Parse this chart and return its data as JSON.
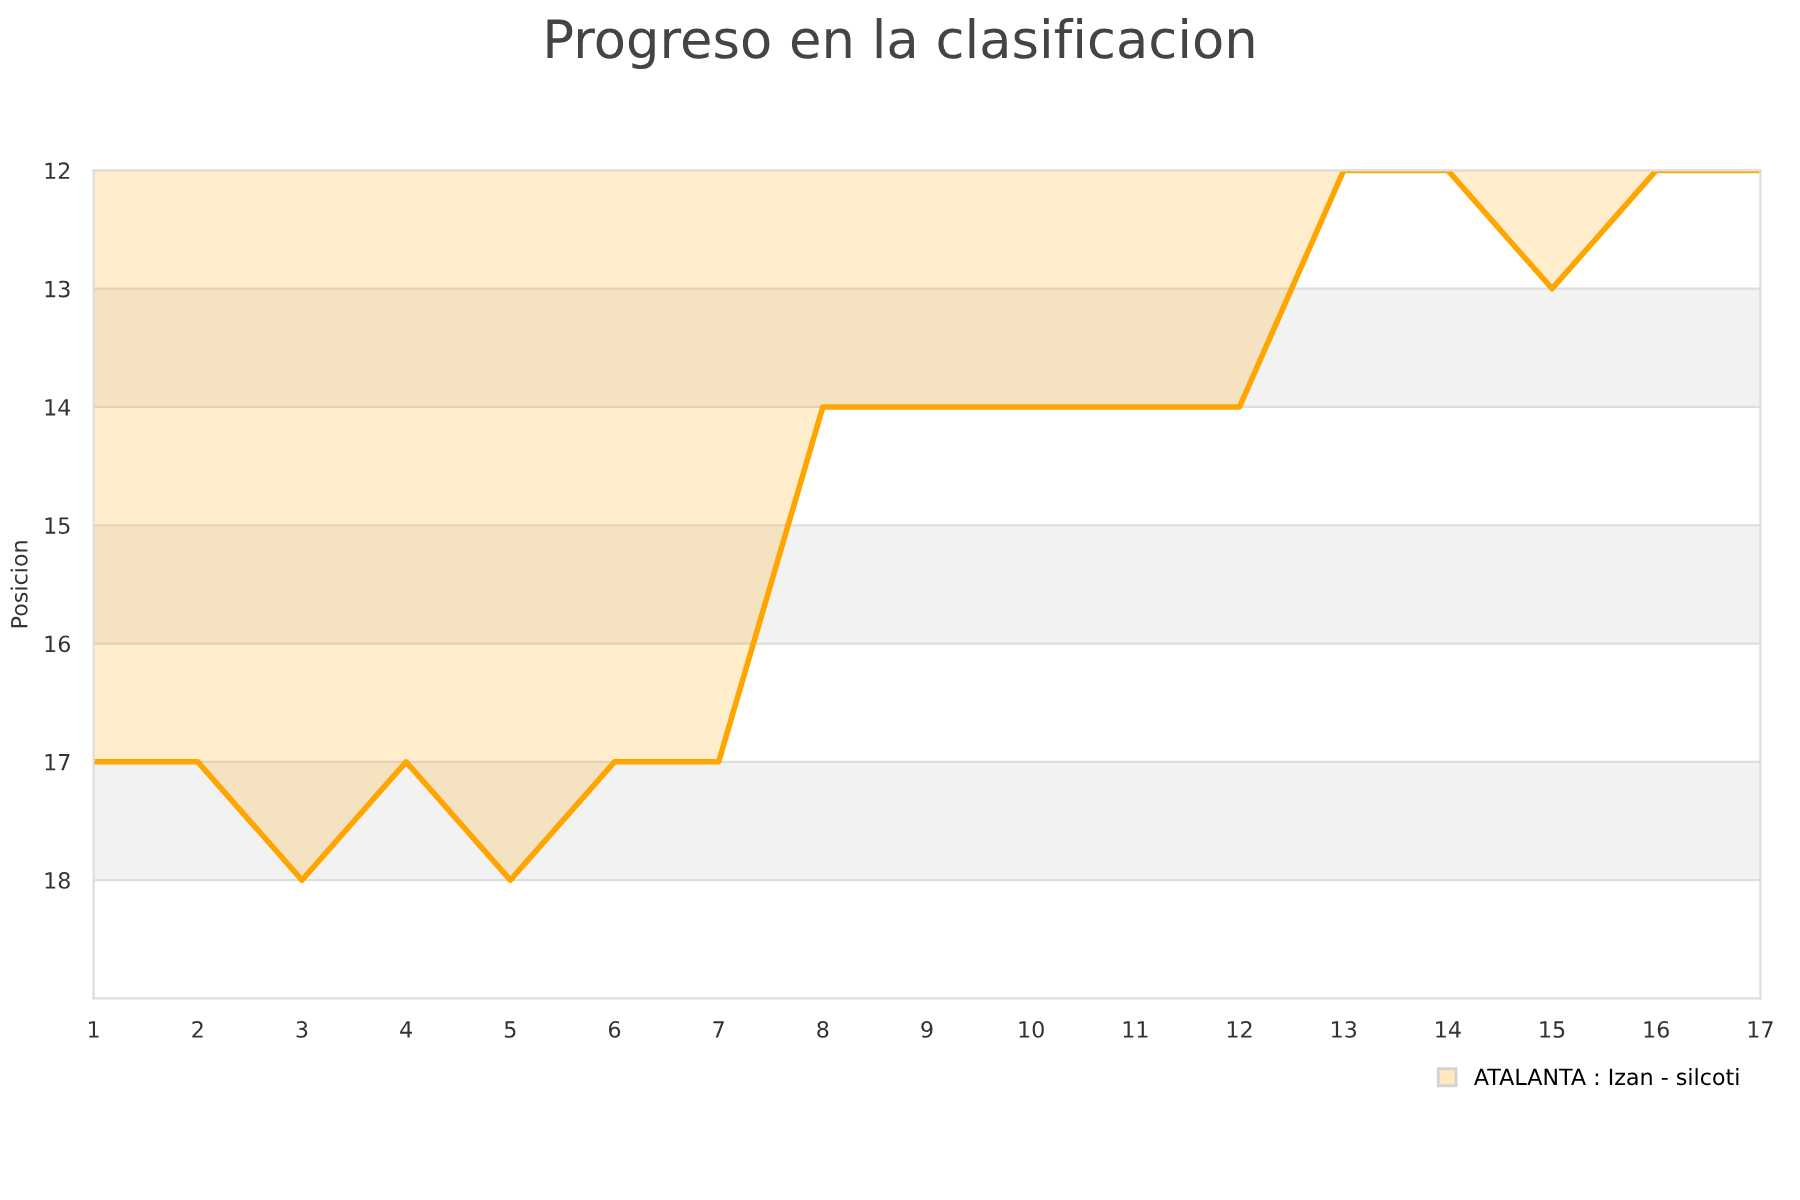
{
  "chart_data": {
    "type": "area",
    "title": "Progreso en la clasificacion",
    "ylabel": "Posicion",
    "x": [
      1,
      2,
      3,
      4,
      5,
      6,
      7,
      8,
      9,
      10,
      11,
      12,
      13,
      14,
      15,
      16,
      17
    ],
    "series": [
      {
        "name": "ATALANTA : Izan - silcoti",
        "color": "#ffa500",
        "values": [
          17,
          17,
          18,
          17,
          18,
          17,
          17,
          14,
          14,
          14,
          14,
          14,
          12,
          12,
          13,
          12,
          12
        ]
      }
    ],
    "xlim": [
      1,
      17
    ],
    "xticks": [
      1,
      2,
      3,
      4,
      5,
      6,
      7,
      8,
      9,
      10,
      11,
      12,
      13,
      14,
      15,
      16,
      17
    ],
    "ylim": [
      19,
      12
    ],
    "yticks": [
      12,
      13,
      14,
      15,
      16,
      17,
      18
    ],
    "bands": [
      {
        "axis": "y",
        "from": 13,
        "to": 14,
        "color": "#f2f2f2"
      },
      {
        "axis": "y",
        "from": 15,
        "to": 16,
        "color": "#f2f2f2"
      },
      {
        "axis": "y",
        "from": 17,
        "to": 18,
        "color": "#f2f2f2"
      }
    ],
    "grid": "y",
    "legend": "bottom right"
  }
}
